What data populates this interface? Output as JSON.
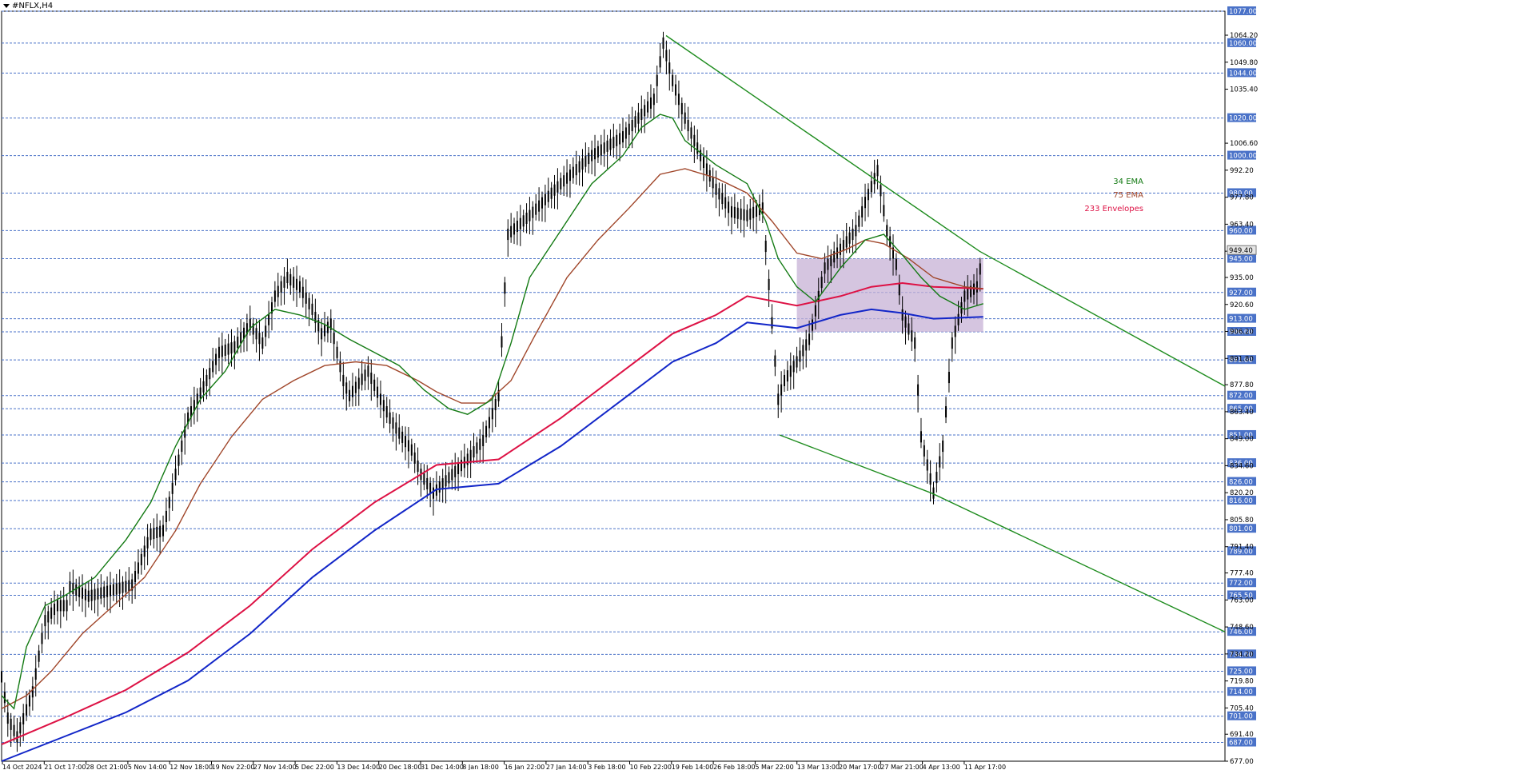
{
  "chart_data": {
    "type": "candlestick",
    "title": "#NFLX,H4",
    "ylim": [
      677,
      1077
    ],
    "x_tick_labels": [
      "14 Oct 2024",
      "21 Oct 17:00",
      "28 Oct 21:00",
      "5 Nov 14:00",
      "12 Nov 18:00",
      "19 Nov 22:00",
      "27 Nov 14:00",
      "5 Dec 22:00",
      "13 Dec 14:00",
      "20 Dec 18:00",
      "31 Dec 14:00",
      "8 Jan 18:00",
      "16 Jan 22:00",
      "27 Jan 14:00",
      "3 Feb 18:00",
      "10 Feb 22:00",
      "19 Feb 14:00",
      "26 Feb 18:00",
      "5 Mar 22:00",
      "13 Mar 13:00",
      "20 Mar 17:00",
      "27 Mar 21:00",
      "4 Apr 13:00",
      "11 Apr 17:00"
    ],
    "y_tick_labels": [
      "1064.20",
      "1049.80",
      "1035.40",
      "1006.60",
      "992.20",
      "977.80",
      "963.40",
      "949.00",
      "935.00",
      "920.60",
      "906.20",
      "891.80",
      "877.80",
      "863.40",
      "849.00",
      "834.60",
      "820.20",
      "805.80",
      "791.40",
      "777.40",
      "763.00",
      "748.60",
      "734.20",
      "719.80",
      "705.40",
      "691.40",
      "677.00"
    ],
    "levels": [
      "1077.00",
      "1060.00",
      "1044.00",
      "1020.00",
      "1000.00",
      "980.00",
      "960.00",
      "945.00",
      "927.00",
      "913.00",
      "906.00",
      "891.00",
      "872.00",
      "865.00",
      "851.00",
      "836.00",
      "826.00",
      "816.00",
      "801.00",
      "789.00",
      "772.00",
      "765.50",
      "746.00",
      "734.00",
      "725.00",
      "714.00",
      "701.00",
      "687.00"
    ],
    "current_price": "949.40",
    "legend": [
      "34 EMA",
      "75 EMA",
      "233 Envelopes"
    ],
    "close_path": [
      [
        0,
        722
      ],
      [
        2,
        700
      ],
      [
        5,
        690
      ],
      [
        10,
        714
      ],
      [
        14,
        752
      ],
      [
        18,
        760
      ],
      [
        21,
        760
      ],
      [
        22,
        770
      ],
      [
        28,
        765
      ],
      [
        35,
        768
      ],
      [
        42,
        771
      ],
      [
        48,
        798
      ],
      [
        52,
        800
      ],
      [
        56,
        830
      ],
      [
        60,
        860
      ],
      [
        63,
        870
      ],
      [
        66,
        880
      ],
      [
        70,
        895
      ],
      [
        75,
        898
      ],
      [
        80,
        910
      ],
      [
        84,
        900
      ],
      [
        88,
        925
      ],
      [
        92,
        935
      ],
      [
        96,
        930
      ],
      [
        100,
        918
      ],
      [
        103,
        905
      ],
      [
        106,
        910
      ],
      [
        110,
        880
      ],
      [
        112,
        872
      ],
      [
        118,
        885
      ],
      [
        122,
        870
      ],
      [
        125,
        860
      ],
      [
        128,
        852
      ],
      [
        132,
        843
      ],
      [
        135,
        830
      ],
      [
        139,
        820
      ],
      [
        150,
        838
      ],
      [
        155,
        848
      ],
      [
        160,
        872
      ],
      [
        163,
        958
      ],
      [
        170,
        968
      ],
      [
        180,
        985
      ],
      [
        190,
        1000
      ],
      [
        200,
        1010
      ],
      [
        210,
        1030
      ],
      [
        213,
        1060
      ],
      [
        216,
        1040
      ],
      [
        220,
        1020
      ],
      [
        225,
        1000
      ],
      [
        230,
        982
      ],
      [
        235,
        970
      ],
      [
        240,
        968
      ],
      [
        245,
        972
      ],
      [
        250,
        870
      ],
      [
        252,
        880
      ],
      [
        256,
        890
      ],
      [
        260,
        902
      ],
      [
        265,
        940
      ],
      [
        270,
        950
      ],
      [
        275,
        960
      ],
      [
        278,
        975
      ],
      [
        282,
        992
      ],
      [
        285,
        960
      ],
      [
        288,
        942
      ],
      [
        290,
        915
      ],
      [
        294,
        900
      ],
      [
        296,
        850
      ],
      [
        300,
        820
      ],
      [
        303,
        845
      ],
      [
        306,
        900
      ],
      [
        310,
        925
      ],
      [
        314,
        930
      ],
      [
        316,
        949
      ]
    ],
    "ema34_path": [
      [
        0,
        712
      ],
      [
        4,
        705
      ],
      [
        8,
        738
      ],
      [
        14,
        760
      ],
      [
        20,
        765
      ],
      [
        30,
        775
      ],
      [
        40,
        795
      ],
      [
        48,
        815
      ],
      [
        56,
        845
      ],
      [
        64,
        870
      ],
      [
        72,
        885
      ],
      [
        80,
        908
      ],
      [
        88,
        918
      ],
      [
        96,
        915
      ],
      [
        104,
        910
      ],
      [
        112,
        902
      ],
      [
        120,
        895
      ],
      [
        128,
        888
      ],
      [
        136,
        875
      ],
      [
        144,
        865
      ],
      [
        150,
        862
      ],
      [
        158,
        870
      ],
      [
        164,
        900
      ],
      [
        170,
        935
      ],
      [
        180,
        960
      ],
      [
        190,
        985
      ],
      [
        200,
        1000
      ],
      [
        206,
        1015
      ],
      [
        212,
        1022
      ],
      [
        216,
        1020
      ],
      [
        220,
        1008
      ],
      [
        230,
        995
      ],
      [
        240,
        985
      ],
      [
        246,
        965
      ],
      [
        250,
        945
      ],
      [
        256,
        930
      ],
      [
        262,
        922
      ],
      [
        270,
        940
      ],
      [
        278,
        955
      ],
      [
        284,
        958
      ],
      [
        290,
        947
      ],
      [
        296,
        935
      ],
      [
        302,
        925
      ],
      [
        310,
        918
      ],
      [
        316,
        921
      ]
    ],
    "ema75_path": [
      [
        0,
        705
      ],
      [
        8,
        712
      ],
      [
        16,
        725
      ],
      [
        26,
        745
      ],
      [
        36,
        760
      ],
      [
        46,
        775
      ],
      [
        56,
        800
      ],
      [
        64,
        825
      ],
      [
        74,
        850
      ],
      [
        84,
        870
      ],
      [
        94,
        880
      ],
      [
        104,
        888
      ],
      [
        114,
        890
      ],
      [
        124,
        888
      ],
      [
        134,
        880
      ],
      [
        140,
        874
      ],
      [
        148,
        868
      ],
      [
        156,
        868
      ],
      [
        164,
        880
      ],
      [
        172,
        905
      ],
      [
        182,
        935
      ],
      [
        192,
        955
      ],
      [
        202,
        972
      ],
      [
        212,
        990
      ],
      [
        220,
        993
      ],
      [
        230,
        988
      ],
      [
        240,
        980
      ],
      [
        248,
        965
      ],
      [
        256,
        948
      ],
      [
        264,
        945
      ],
      [
        272,
        950
      ],
      [
        278,
        955
      ],
      [
        284,
        953
      ],
      [
        292,
        945
      ],
      [
        300,
        935
      ],
      [
        310,
        930
      ],
      [
        316,
        929
      ]
    ],
    "env_upper_path": [
      [
        0,
        686
      ],
      [
        20,
        700
      ],
      [
        40,
        715
      ],
      [
        60,
        735
      ],
      [
        80,
        760
      ],
      [
        100,
        790
      ],
      [
        120,
        815
      ],
      [
        140,
        835
      ],
      [
        160,
        838
      ],
      [
        180,
        860
      ],
      [
        200,
        885
      ],
      [
        216,
        905
      ],
      [
        230,
        915
      ],
      [
        240,
        925
      ],
      [
        256,
        920
      ],
      [
        270,
        925
      ],
      [
        280,
        930
      ],
      [
        290,
        932
      ],
      [
        300,
        930
      ],
      [
        316,
        929
      ]
    ],
    "env_lower_path": [
      [
        0,
        677
      ],
      [
        20,
        690
      ],
      [
        40,
        703
      ],
      [
        60,
        720
      ],
      [
        80,
        745
      ],
      [
        100,
        775
      ],
      [
        120,
        800
      ],
      [
        140,
        822
      ],
      [
        160,
        825
      ],
      [
        180,
        845
      ],
      [
        200,
        870
      ],
      [
        216,
        890
      ],
      [
        230,
        900
      ],
      [
        240,
        911
      ],
      [
        256,
        908
      ],
      [
        270,
        915
      ],
      [
        280,
        918
      ],
      [
        290,
        916
      ],
      [
        300,
        913
      ],
      [
        316,
        914
      ]
    ],
    "trendline_upper": [
      [
        1,
        1064
      ],
      [
        4,
        949
      ],
      [
        7,
        877
      ]
    ],
    "trendline_lower": [
      [
        1,
        851
      ],
      [
        4,
        820
      ],
      [
        7,
        746
      ]
    ],
    "range_box": {
      "x_start": 256,
      "x_end": 316,
      "y_high": 945,
      "y_low": 906
    }
  },
  "colors": {
    "grid": "#4a72c8",
    "axis_label_bg": "#4a72c8",
    "current_label_bg": "#e5e5e5",
    "ema34": "#137a13",
    "ema75": "#a0462a",
    "env_upper": "#dd1144",
    "env_lower": "#1226c8",
    "trend": "#1e8c1e",
    "box_fill": "#c7b1d6"
  }
}
